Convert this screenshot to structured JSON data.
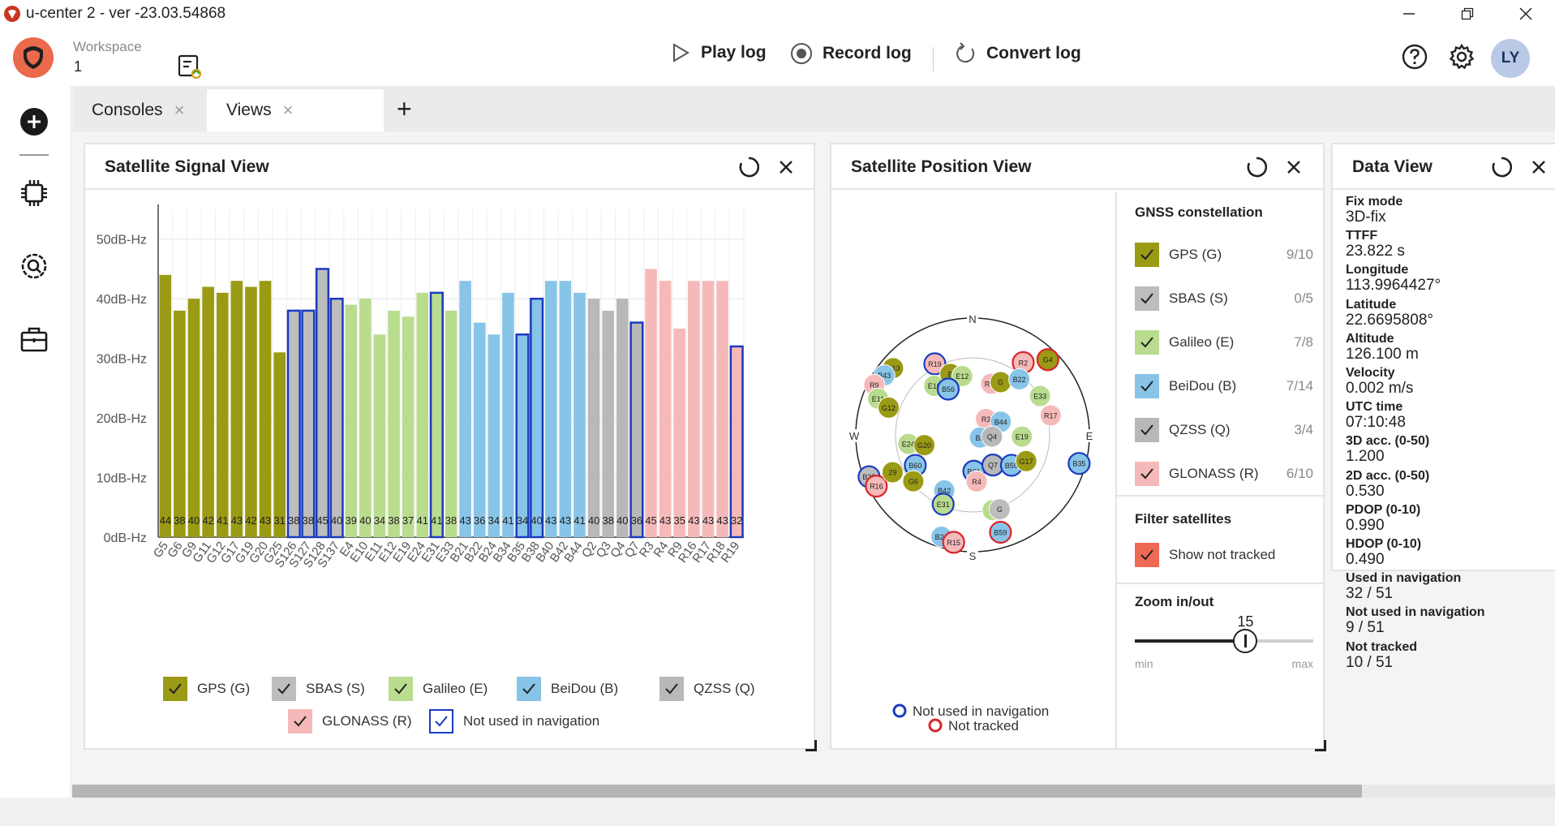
{
  "window": {
    "title": "u-center 2 - ver -23.03.54868"
  },
  "header": {
    "workspace_label": "Workspace",
    "workspace_value": "1",
    "play_log": "Play log",
    "record_log": "Record log",
    "convert_log": "Convert log",
    "avatar_initials": "LY"
  },
  "tabs": [
    {
      "label": "Consoles",
      "active": false
    },
    {
      "label": "Views",
      "active": true
    }
  ],
  "signal_view": {
    "title": "Satellite Signal View",
    "legend": [
      {
        "label": "GPS (G)",
        "color": "#9a9a14"
      },
      {
        "label": "SBAS (S)",
        "color": "#bdbdbd"
      },
      {
        "label": "Galileo (E)",
        "color": "#b9dc8e"
      },
      {
        "label": "BeiDou (B)",
        "color": "#88c4e8"
      },
      {
        "label": "QZSS (Q)",
        "color": "#b8b8b8"
      },
      {
        "label": "GLONASS (R)",
        "color": "#f6b9b9"
      },
      {
        "label": "Not used in navigation",
        "color": "#1b3bbf"
      }
    ]
  },
  "chart_data": {
    "type": "bar",
    "ylim": [
      0,
      55
    ],
    "yticks": [
      "0dB-Hz",
      "10dB-Hz",
      "20dB-Hz",
      "30dB-Hz",
      "40dB-Hz",
      "50dB-Hz"
    ],
    "ytick_values": [
      0,
      10,
      20,
      30,
      40,
      50
    ],
    "categories": [
      "G5",
      "G6",
      "G9",
      "G11",
      "G12",
      "G17",
      "G19",
      "G20",
      "G25",
      "S126",
      "S127",
      "S128",
      "S137",
      "E4",
      "E10",
      "E11",
      "E12",
      "E19",
      "E24",
      "E31",
      "E33",
      "B21",
      "B22",
      "B24",
      "B34",
      "B35",
      "B38",
      "B40",
      "B42",
      "B44",
      "Q2",
      "Q3",
      "Q4",
      "Q7",
      "R3",
      "R4",
      "R9",
      "R16",
      "R17",
      "R18",
      "R19"
    ],
    "values": [
      44,
      38,
      40,
      42,
      41,
      43,
      42,
      43,
      31,
      38,
      38,
      45,
      40,
      39,
      40,
      34,
      38,
      37,
      41,
      41,
      38,
      43,
      36,
      34,
      41,
      34,
      40,
      43,
      43,
      41,
      40,
      38,
      40,
      36,
      45,
      43,
      35,
      43,
      43,
      43,
      32
    ],
    "data_labels": [
      "44",
      "38",
      "40",
      "42",
      "41",
      "43",
      "42",
      "43",
      "31",
      "38",
      "38",
      "45",
      "40",
      "39",
      "40",
      "34",
      "38",
      "37",
      "41",
      "41",
      "38",
      "43",
      "36",
      "34",
      "41",
      "34",
      "40",
      "43",
      "43",
      "41",
      "40",
      "38",
      "40",
      "36",
      "45",
      "43",
      "35",
      "43",
      "43",
      "43",
      "32"
    ],
    "constellation": [
      "G",
      "G",
      "G",
      "G",
      "G",
      "G",
      "G",
      "G",
      "G",
      "S",
      "S",
      "S",
      "S",
      "E",
      "E",
      "E",
      "E",
      "E",
      "E",
      "E",
      "E",
      "B",
      "B",
      "B",
      "B",
      "B",
      "B",
      "B",
      "B",
      "B",
      "Q",
      "Q",
      "Q",
      "Q",
      "R",
      "R",
      "R",
      "R",
      "R",
      "R",
      "R"
    ],
    "not_used": [
      "S126",
      "S127",
      "S128",
      "S137",
      "E31",
      "B35",
      "B38",
      "Q7",
      "R19"
    ],
    "colors": {
      "G": "#9a9a14",
      "S": "#bdbdbd",
      "E": "#b9dc8e",
      "B": "#88c4e8",
      "Q": "#b8b8b8",
      "R": "#f6b9b9",
      "not_used_border": "#1b3bbf"
    },
    "grid": true
  },
  "position_view": {
    "title": "Satellite Position View",
    "compass": {
      "n": "N",
      "s": "S",
      "e": "E",
      "w": "W"
    },
    "satellites": [
      {
        "id": "G13",
        "az": 310,
        "el": 10,
        "c": "G",
        "ring": "none"
      },
      {
        "id": "B43",
        "az": 304,
        "el": 8,
        "c": "B",
        "ring": "none"
      },
      {
        "id": "R19",
        "az": 332,
        "el": 28,
        "c": "R",
        "ring": "used"
      },
      {
        "id": "R9",
        "az": 297,
        "el": 5,
        "c": "R",
        "ring": "none"
      },
      {
        "id": "E11",
        "az": 291,
        "el": 12,
        "c": "E",
        "ring": "none"
      },
      {
        "id": "G12",
        "az": 288,
        "el": 22,
        "c": "G",
        "ring": "none"
      },
      {
        "id": "E10",
        "az": 322,
        "el": 42,
        "c": "E",
        "ring": "none"
      },
      {
        "id": "B",
        "az": 340,
        "el": 40,
        "c": "G",
        "ring": "none"
      },
      {
        "id": "E12",
        "az": 350,
        "el": 44,
        "c": "E",
        "ring": "none"
      },
      {
        "id": "B56",
        "az": 332,
        "el": 50,
        "c": "B",
        "ring": "used"
      },
      {
        "id": "R18",
        "az": 20,
        "el": 48,
        "c": "R",
        "ring": "none"
      },
      {
        "id": "G",
        "az": 28,
        "el": 44,
        "c": "G",
        "ring": "none"
      },
      {
        "id": "R2",
        "az": 35,
        "el": 22,
        "c": "R",
        "ring": "nottracked"
      },
      {
        "id": "G4",
        "az": 45,
        "el": 8,
        "c": "G",
        "ring": "nottracked"
      },
      {
        "id": "B22",
        "az": 40,
        "el": 34,
        "c": "B",
        "ring": "none"
      },
      {
        "id": "E33",
        "az": 60,
        "el": 30,
        "c": "E",
        "ring": "none"
      },
      {
        "id": "R17",
        "az": 76,
        "el": 28,
        "c": "R",
        "ring": "none"
      },
      {
        "id": "R3",
        "az": 40,
        "el": 74,
        "c": "R",
        "ring": "none"
      },
      {
        "id": "B44",
        "az": 65,
        "el": 66,
        "c": "B",
        "ring": "none"
      },
      {
        "id": "B2",
        "az": 110,
        "el": 84,
        "c": "B",
        "ring": "none"
      },
      {
        "id": "Q4",
        "az": 95,
        "el": 75,
        "c": "Q",
        "ring": "none"
      },
      {
        "id": "E19",
        "az": 92,
        "el": 52,
        "c": "E",
        "ring": "none"
      },
      {
        "id": "E24",
        "az": 262,
        "el": 40,
        "c": "E",
        "ring": "none"
      },
      {
        "id": "G20",
        "az": 258,
        "el": 52,
        "c": "G",
        "ring": "none"
      },
      {
        "id": "B32",
        "az": 248,
        "el": 4,
        "c": "S",
        "ring": "used"
      },
      {
        "id": "R16",
        "az": 242,
        "el": 6,
        "c": "R",
        "ring": "nottracked"
      },
      {
        "id": "29",
        "az": 245,
        "el": 22,
        "c": "G",
        "ring": "none"
      },
      {
        "id": "B60",
        "az": 242,
        "el": 40,
        "c": "B",
        "ring": "used"
      },
      {
        "id": "G6",
        "az": 232,
        "el": 32,
        "c": "G",
        "ring": "none"
      },
      {
        "id": "B61",
        "az": 178,
        "el": 62,
        "c": "B",
        "ring": "used"
      },
      {
        "id": "Q7",
        "az": 146,
        "el": 62,
        "c": "Q",
        "ring": "used"
      },
      {
        "id": "B59",
        "az": 128,
        "el": 52,
        "c": "B",
        "ring": "used"
      },
      {
        "id": "G17",
        "az": 116,
        "el": 44,
        "c": "G",
        "ring": "none"
      },
      {
        "id": "B35",
        "az": 105,
        "el": 5,
        "c": "B",
        "ring": "used"
      },
      {
        "id": "R4",
        "az": 175,
        "el": 54,
        "c": "R",
        "ring": "none"
      },
      {
        "id": "B42",
        "az": 207,
        "el": 42,
        "c": "B",
        "ring": "none"
      },
      {
        "id": "E31",
        "az": 203,
        "el": 32,
        "c": "E",
        "ring": "used"
      },
      {
        "id": "E4",
        "az": 165,
        "el": 30,
        "c": "E",
        "ring": "none"
      },
      {
        "id": "G",
        "az": 160,
        "el": 29,
        "c": "S",
        "ring": "none"
      },
      {
        "id": "B24",
        "az": 197,
        "el": 8,
        "c": "B",
        "ring": "none"
      },
      {
        "id": "R15",
        "az": 190,
        "el": 6,
        "c": "R",
        "ring": "nottracked"
      },
      {
        "id": "B59",
        "az": 164,
        "el": 12,
        "c": "B",
        "ring": "nottracked"
      }
    ],
    "legend_not_used": "Not used in navigation",
    "legend_not_tracked": "Not tracked"
  },
  "gnss": {
    "title": "GNSS constellation",
    "items": [
      {
        "label": "GPS (G)",
        "count": "9/10",
        "color": "#9a9a14"
      },
      {
        "label": "SBAS (S)",
        "count": "0/5",
        "color": "#bdbdbd"
      },
      {
        "label": "Galileo (E)",
        "count": "7/8",
        "color": "#b9dc8e"
      },
      {
        "label": "BeiDou (B)",
        "count": "7/14",
        "color": "#88c4e8"
      },
      {
        "label": "QZSS (Q)",
        "count": "3/4",
        "color": "#b8b8b8"
      },
      {
        "label": "GLONASS (R)",
        "count": "6/10",
        "color": "#f6b9b9"
      }
    ],
    "filter_title": "Filter satellites",
    "filter_label": "Show not tracked",
    "filter_color": "#ef6a55",
    "zoom_title": "Zoom in/out",
    "zoom_value": "15",
    "zoom_fraction": 0.62,
    "zoom_min": "min",
    "zoom_max": "max"
  },
  "data_view": {
    "title": "Data View",
    "rows": [
      {
        "label": "Fix mode",
        "value": "3D-fix"
      },
      {
        "label": "TTFF",
        "value": "23.822 s"
      },
      {
        "label": "Longitude",
        "value": "113.9964427°"
      },
      {
        "label": "Latitude",
        "value": "22.6695808°"
      },
      {
        "label": "Altitude",
        "value": "126.100 m"
      },
      {
        "label": "Velocity",
        "value": "0.002 m/s"
      },
      {
        "label": "UTC time",
        "value": "07:10:48"
      },
      {
        "label": "3D acc. (0-50)",
        "value": "1.200"
      },
      {
        "label": "2D acc. (0-50)",
        "value": "0.530"
      },
      {
        "label": "PDOP (0-10)",
        "value": "0.990"
      },
      {
        "label": "HDOP (0-10)",
        "value": "0.490"
      },
      {
        "label": "Used in navigation",
        "value": "32 / 51"
      },
      {
        "label": "Not used in navigation",
        "value": "9 / 51"
      },
      {
        "label": "Not tracked",
        "value": "10 / 51"
      }
    ]
  }
}
